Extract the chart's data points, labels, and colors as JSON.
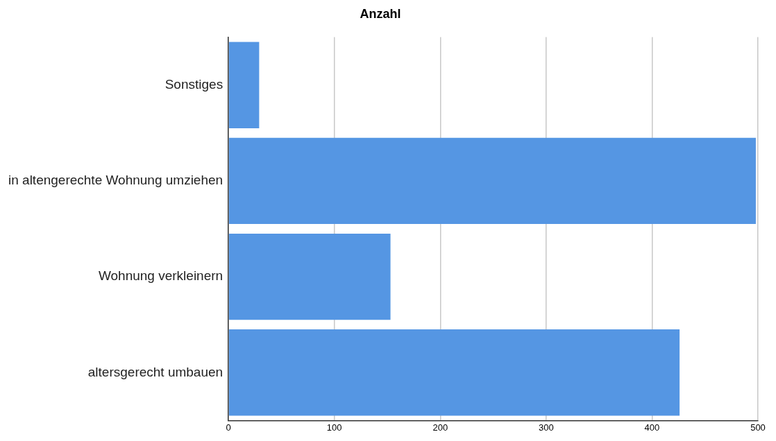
{
  "chart_data": {
    "type": "bar",
    "orientation": "horizontal",
    "title": "Anzahl",
    "categories": [
      "Sonstiges",
      "in altengerechte Wohnung umziehen",
      "Wohnung verkleinern",
      "altersgerecht umbauen"
    ],
    "values": [
      29,
      498,
      153,
      426
    ],
    "color": "#5596e3",
    "xlim": [
      0,
      500
    ],
    "xticks": [
      0,
      100,
      200,
      300,
      400,
      500
    ],
    "grid": "x",
    "legend": false
  }
}
